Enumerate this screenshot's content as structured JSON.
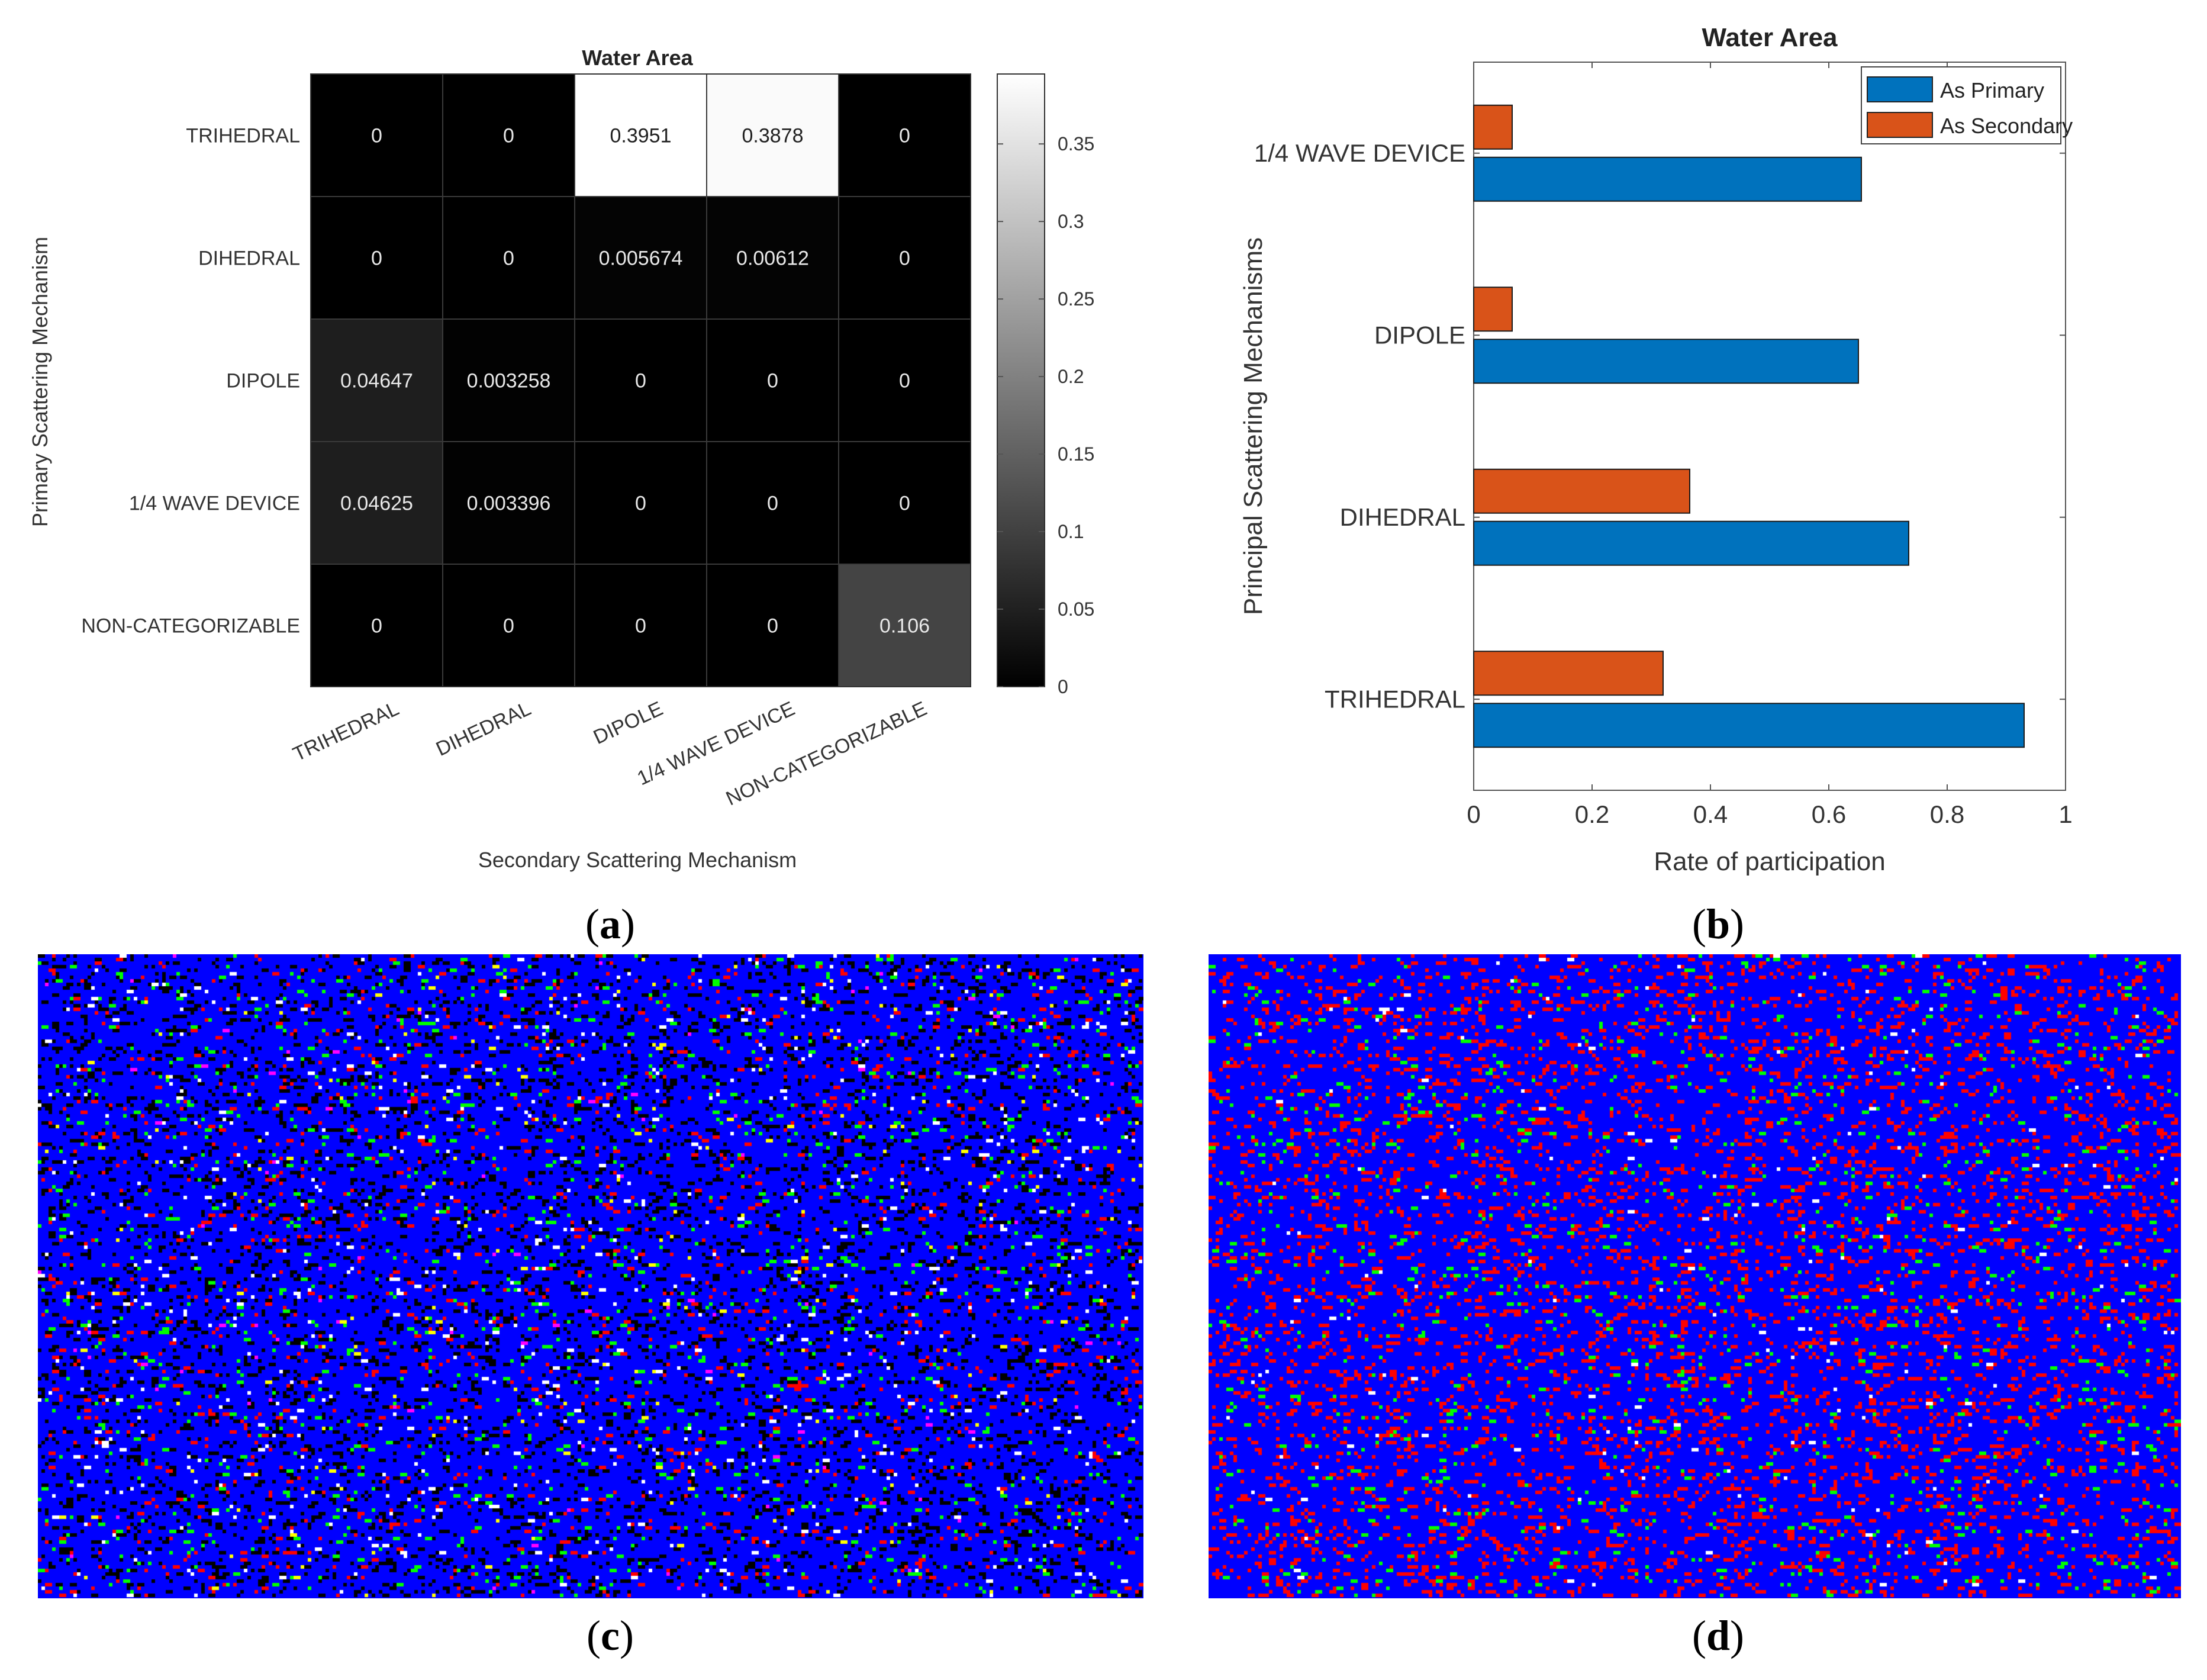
{
  "panels": {
    "a": {
      "open": "(",
      "letter": "a",
      "close": ")"
    },
    "b": {
      "open": "(",
      "letter": "b",
      "close": ")"
    },
    "c": {
      "open": "(",
      "letter": "c",
      "close": ")"
    },
    "d": {
      "open": "(",
      "letter": "d",
      "close": ")"
    }
  },
  "chart_data": [
    {
      "type": "heatmap",
      "title": "Water Area",
      "xlabel": "Secondary Scattering Mechanism",
      "ylabel": "Primary Scattering Mechanism",
      "x_categories": [
        "TRIHEDRAL",
        "DIHEDRAL",
        "DIPOLE",
        "1/4 WAVE DEVICE",
        "NON-CATEGORIZABLE"
      ],
      "y_categories": [
        "TRIHEDRAL",
        "DIHEDRAL",
        "DIPOLE",
        "1/4 WAVE DEVICE",
        "NON-CATEGORIZABLE"
      ],
      "cell_labels": [
        [
          "0",
          "0",
          "0.3951",
          "0.3878",
          "0"
        ],
        [
          "0",
          "0",
          "0.005674",
          "0.00612",
          "0"
        ],
        [
          "0.04647",
          "0.003258",
          "0",
          "0",
          "0"
        ],
        [
          "0.04625",
          "0.003396",
          "0",
          "0",
          "0"
        ],
        [
          "0",
          "0",
          "0",
          "0",
          "0.106"
        ]
      ],
      "values": [
        [
          0,
          0,
          0.3951,
          0.3878,
          0
        ],
        [
          0,
          0,
          0.005674,
          0.00612,
          0
        ],
        [
          0.04647,
          0.003258,
          0,
          0,
          0
        ],
        [
          0.04625,
          0.003396,
          0,
          0,
          0
        ],
        [
          0,
          0,
          0,
          0,
          0.106
        ]
      ],
      "colormap": "gray",
      "clim": [
        0,
        0.3951
      ],
      "colorbar_ticks": [
        0,
        0.05,
        0.1,
        0.15,
        0.2,
        0.25,
        0.3,
        0.35
      ],
      "colorbar_tick_labels": [
        "0",
        "0.05",
        "0.1",
        "0.15",
        "0.2",
        "0.25",
        "0.3",
        "0.35"
      ]
    },
    {
      "type": "bar",
      "orientation": "horizontal",
      "title": "Water Area",
      "xlabel": "Rate of participation",
      "ylabel": "Principal Scattering Mechanisms",
      "categories": [
        "TRIHEDRAL",
        "DIHEDRAL",
        "DIPOLE",
        "1/4 WAVE DEVICE"
      ],
      "series": [
        {
          "name": "As Primary",
          "color": "#0072BD",
          "values": [
            0.93,
            0.735,
            0.65,
            0.655
          ]
        },
        {
          "name": "As Secondary",
          "color": "#D95319",
          "values": [
            0.32,
            0.365,
            0.065,
            0.065
          ]
        }
      ],
      "xlim": [
        0,
        1
      ],
      "xticks": [
        0,
        0.2,
        0.4,
        0.6,
        0.8,
        1
      ],
      "xtick_labels": [
        "0",
        "0.2",
        "0.4",
        "0.6",
        "0.8",
        "1"
      ],
      "legend": "top-right"
    }
  ],
  "maps": {
    "c": {
      "background": "#0000ff",
      "palette": [
        "#000000",
        "#ff0000",
        "#00ff00",
        "#ffffff",
        "#ffff00",
        "#ff00ff"
      ],
      "description_colors": [
        "blue",
        "black",
        "red",
        "green",
        "white",
        "yellow"
      ]
    },
    "d": {
      "background": "#0000ff",
      "palette": [
        "#ff0000",
        "#00ff00",
        "#ffffff"
      ],
      "description_colors": [
        "blue",
        "red",
        "green",
        "white"
      ]
    }
  }
}
